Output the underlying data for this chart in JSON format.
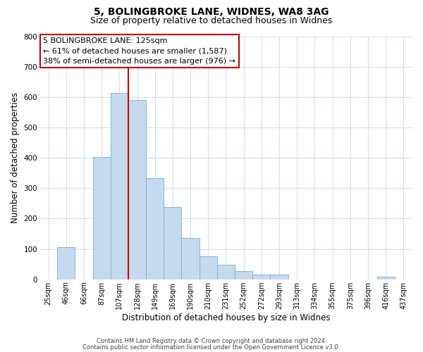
{
  "title": "5, BOLINGBROKE LANE, WIDNES, WA8 3AG",
  "subtitle": "Size of property relative to detached houses in Widnes",
  "xlabel": "Distribution of detached houses by size in Widnes",
  "ylabel": "Number of detached properties",
  "bar_labels": [
    "25sqm",
    "46sqm",
    "66sqm",
    "87sqm",
    "107sqm",
    "128sqm",
    "149sqm",
    "169sqm",
    "190sqm",
    "210sqm",
    "231sqm",
    "252sqm",
    "272sqm",
    "293sqm",
    "313sqm",
    "334sqm",
    "355sqm",
    "375sqm",
    "396sqm",
    "416sqm",
    "437sqm"
  ],
  "bar_values": [
    0,
    106,
    0,
    403,
    614,
    591,
    333,
    237,
    136,
    76,
    49,
    26,
    16,
    16,
    0,
    0,
    0,
    0,
    0,
    8,
    0
  ],
  "bar_color": "#c5d9ef",
  "bar_edgecolor": "#7aafd4",
  "vline_x": 4.5,
  "vline_color": "#cc0000",
  "ylim": [
    0,
    800
  ],
  "yticks": [
    0,
    100,
    200,
    300,
    400,
    500,
    600,
    700,
    800
  ],
  "annotation_title": "5 BOLINGBROKE LANE: 125sqm",
  "annotation_line1": "← 61% of detached houses are smaller (1,587)",
  "annotation_line2": "38% of semi-detached houses are larger (976) →",
  "annotation_box_color": "#ffffff",
  "annotation_box_edgecolor": "#cc0000",
  "footer1": "Contains HM Land Registry data © Crown copyright and database right 2024.",
  "footer2": "Contains public sector information licensed under the Open Government Licence v3.0.",
  "background_color": "#ffffff",
  "grid_color": "#d0dff0",
  "title_fontsize": 10,
  "subtitle_fontsize": 9,
  "xlabel_fontsize": 8.5,
  "ylabel_fontsize": 8.5,
  "tick_fontsize": 7,
  "annotation_fontsize": 8,
  "footer_fontsize": 6
}
